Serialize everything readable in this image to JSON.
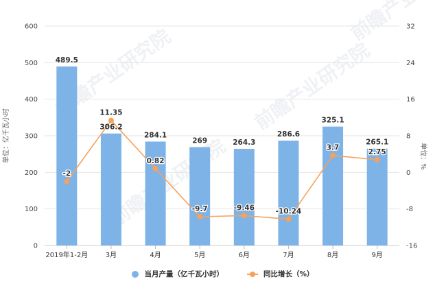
{
  "chart_data": {
    "type": "bar+line",
    "title": "",
    "categories": [
      "2019年1-2月",
      "3月",
      "4月",
      "5月",
      "6月",
      "7月",
      "8月",
      "9月"
    ],
    "series": [
      {
        "name": "当月产量（亿千瓦小时）",
        "type": "bar",
        "axis": "left",
        "color": "#7eb3e8",
        "values": [
          489.5,
          306.2,
          284.1,
          269,
          264.3,
          286.6,
          325.1,
          265.1
        ],
        "labels": [
          "489.5",
          "306.2",
          "284.1",
          "269",
          "264.3",
          "286.6",
          "325.1",
          "265.1"
        ]
      },
      {
        "name": "同比增长（%）",
        "type": "line",
        "axis": "right",
        "color": "#f4a25c",
        "values": [
          -2,
          11.35,
          0.82,
          -9.7,
          -9.46,
          -10.24,
          3.7,
          2.75
        ],
        "labels": [
          "-2",
          "11.35",
          "0.82",
          "-9.7",
          "-9.46",
          "-10.24",
          "3.7",
          "2.75"
        ]
      }
    ],
    "ylabel": "单位：亿千瓦小时",
    "y2label": "单位：%",
    "ylim": [
      0,
      600
    ],
    "y2lim": [
      -16,
      32
    ],
    "yticks": [
      "0",
      "100",
      "200",
      "300",
      "400",
      "500",
      "600"
    ],
    "y2ticks": [
      "-16",
      "-8",
      "0",
      "8",
      "16",
      "24",
      "32"
    ],
    "grid": true,
    "legend_position": "bottom"
  },
  "legend": {
    "bar_label": "当月产量（亿千瓦小时）",
    "line_label": "同比增长（%）"
  },
  "axes": {
    "left_title": "单位：亿千瓦小时",
    "right_title": "单位：%"
  },
  "watermark": "前瞻产业研究院"
}
